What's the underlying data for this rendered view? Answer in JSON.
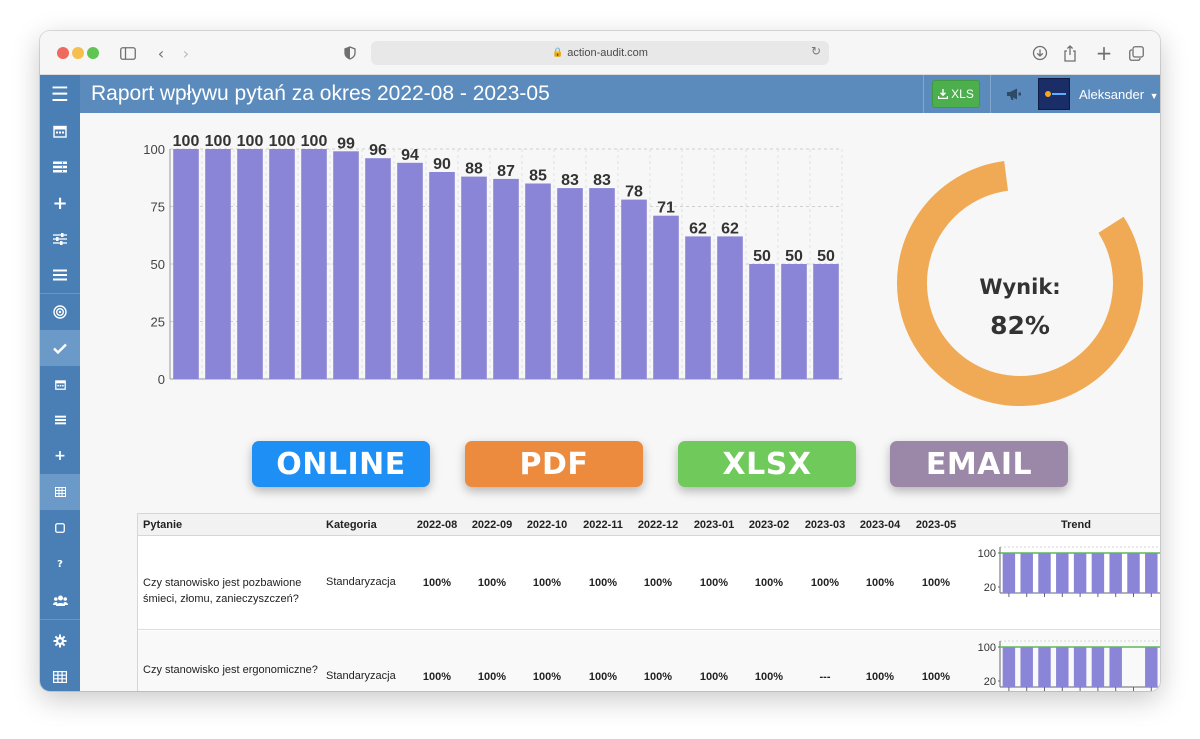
{
  "browser": {
    "url": "action-audit.com"
  },
  "app": {
    "title": "Raport wpływu pytań za okres 2022-08 - 2023-05",
    "xls_button": "XLS",
    "user_name": "Aleksander"
  },
  "sidebar": {
    "items": [
      {
        "icon": "calendar-icon"
      },
      {
        "icon": "list-icon"
      },
      {
        "icon": "plus-icon"
      },
      {
        "icon": "sliders-icon"
      },
      {
        "icon": "menu-icon"
      },
      {
        "icon": "target-icon"
      },
      {
        "icon": "check-icon",
        "active": true
      },
      {
        "icon": "calendar-small-icon"
      },
      {
        "icon": "list-small-icon"
      },
      {
        "icon": "plus-small-icon"
      },
      {
        "icon": "table-icon",
        "active": true
      },
      {
        "icon": "square-icon"
      },
      {
        "icon": "question-icon"
      },
      {
        "icon": "users-icon"
      },
      {
        "icon": "gear-icon"
      },
      {
        "icon": "grid-icon"
      },
      {
        "icon": "book-icon"
      }
    ]
  },
  "chart_data": [
    {
      "type": "bar",
      "values": [
        100,
        100,
        100,
        100,
        100,
        99,
        96,
        94,
        90,
        88,
        87,
        85,
        83,
        83,
        78,
        71,
        62,
        62,
        50,
        50,
        50
      ],
      "ylim": [
        0,
        100
      ],
      "yticks": [
        0,
        25,
        50,
        75,
        100
      ],
      "bar_color": "#8a85d6",
      "grid": true
    },
    {
      "type": "pie",
      "values": [
        82,
        18
      ],
      "title": "Wynik:",
      "value_label": "82%",
      "color": "#f0aa55"
    }
  ],
  "export_buttons": {
    "online": "ONLINE",
    "pdf": "PDF",
    "xlsx": "XLSX",
    "email": "EMAIL"
  },
  "table": {
    "headers": {
      "question": "Pytanie",
      "category": "Kategoria",
      "months": [
        "2022-08",
        "2022-09",
        "2022-10",
        "2022-11",
        "2022-12",
        "2023-01",
        "2023-02",
        "2023-03",
        "2023-04",
        "2023-05"
      ],
      "trend": "Trend"
    },
    "rows": [
      {
        "question": "Czy stanowisko jest pozbawione śmieci, złomu, zanieczyszczeń?",
        "category": "Standaryzacja",
        "values": [
          "100%",
          "100%",
          "100%",
          "100%",
          "100%",
          "100%",
          "100%",
          "100%",
          "100%",
          "100%"
        ],
        "trend_ticks": [
          "100",
          "20"
        ],
        "trend_values": [
          100,
          100,
          100,
          100,
          100,
          100,
          100,
          100,
          100,
          100
        ]
      },
      {
        "question": "Czy stanowisko jest ergonomiczne?",
        "category": "Standaryzacja",
        "values": [
          "100%",
          "100%",
          "100%",
          "100%",
          "100%",
          "100%",
          "100%",
          "---",
          "100%",
          "100%"
        ],
        "trend_ticks": [
          "100",
          "20"
        ],
        "trend_values": [
          100,
          100,
          100,
          100,
          100,
          100,
          100,
          null,
          100,
          100
        ]
      }
    ]
  }
}
